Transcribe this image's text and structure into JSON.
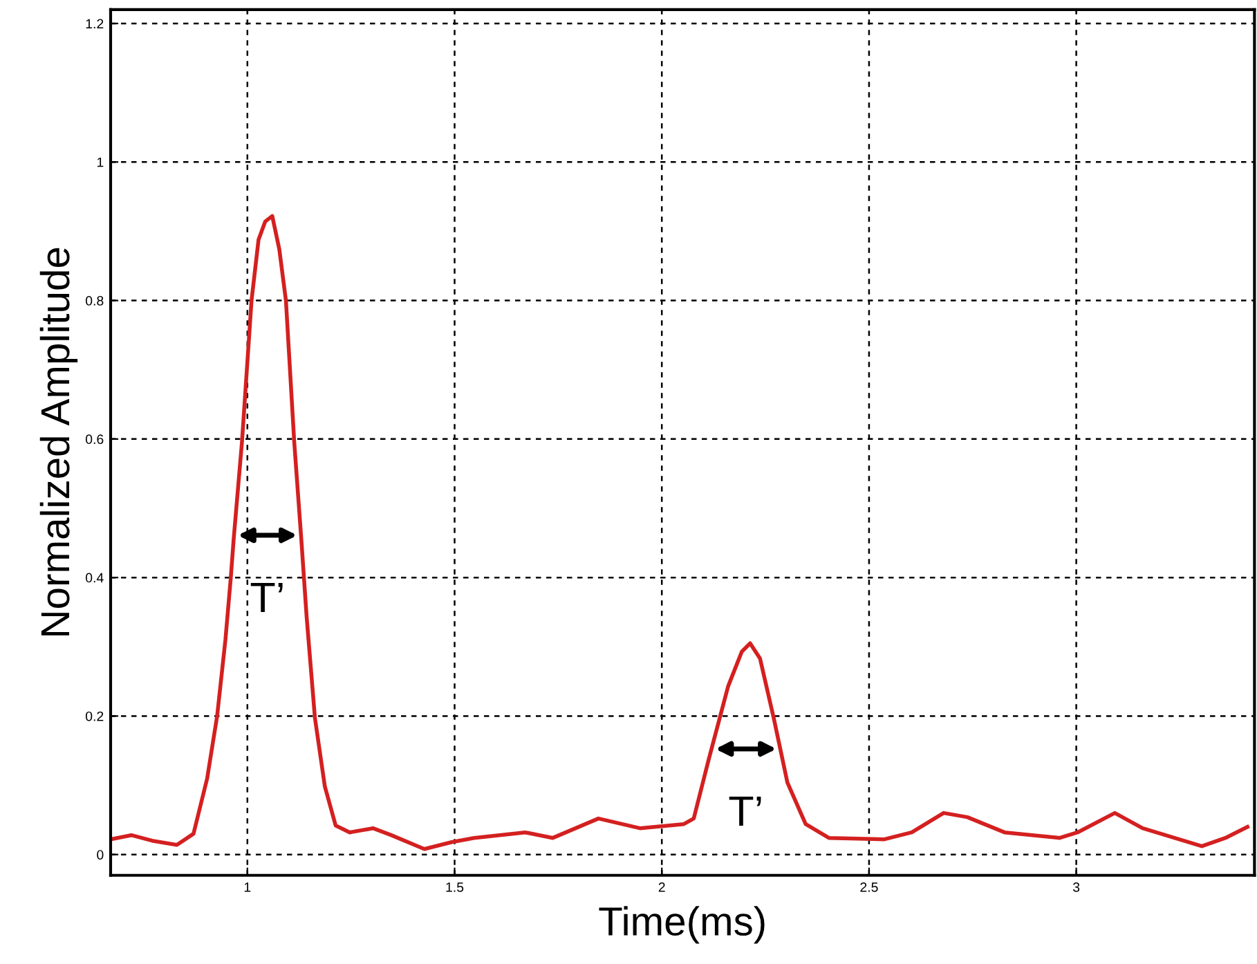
{
  "chart_data": {
    "type": "line",
    "xlabel": "Time(ms)",
    "ylabel": "Normalized Amplitude",
    "x": [
      0.67,
      0.72,
      0.77,
      0.83,
      0.87,
      0.903,
      0.927,
      0.947,
      0.96,
      0.967,
      0.987,
      1.01,
      1.027,
      1.043,
      1.06,
      1.077,
      1.093,
      1.113,
      1.13,
      1.143,
      1.163,
      1.187,
      1.213,
      1.247,
      1.303,
      1.347,
      1.427,
      1.493,
      1.547,
      1.67,
      1.737,
      1.847,
      1.947,
      2.053,
      2.077,
      2.113,
      2.16,
      2.193,
      2.213,
      2.237,
      2.27,
      2.303,
      2.347,
      2.403,
      2.537,
      2.603,
      2.68,
      2.737,
      2.827,
      2.96,
      3.003,
      3.093,
      3.16,
      3.303,
      3.36,
      3.413
    ],
    "series": [
      {
        "color": "#d42020",
        "values": [
          0.022,
          0.028,
          0.02,
          0.014,
          0.03,
          0.11,
          0.2,
          0.31,
          0.4,
          0.456,
          0.596,
          0.8,
          0.888,
          0.914,
          0.922,
          0.874,
          0.8,
          0.596,
          0.456,
          0.343,
          0.197,
          0.098,
          0.042,
          0.032,
          0.038,
          0.028,
          0.008,
          0.018,
          0.024,
          0.032,
          0.024,
          0.052,
          0.038,
          0.044,
          0.052,
          0.137,
          0.243,
          0.293,
          0.305,
          0.283,
          0.197,
          0.104,
          0.044,
          0.024,
          0.022,
          0.032,
          0.06,
          0.054,
          0.032,
          0.024,
          0.032,
          0.06,
          0.038,
          0.012,
          0.024,
          0.04
        ]
      }
    ],
    "xlim": [
      0.67,
      3.43
    ],
    "ylim": [
      -0.03,
      1.22
    ],
    "xticks": [
      1,
      1.5,
      2,
      2.5,
      3
    ],
    "yticks": [
      0,
      0.2,
      0.4,
      0.6,
      0.8,
      1,
      1.2
    ],
    "grid": true,
    "line_style": "solid",
    "annotations": [
      "T’",
      "T’"
    ]
  }
}
